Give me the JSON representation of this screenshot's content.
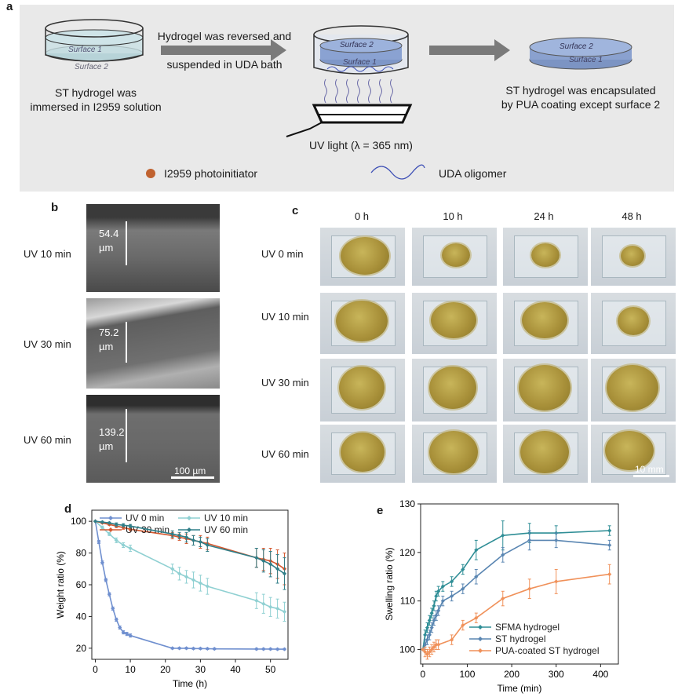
{
  "panel_labels": {
    "a": "a",
    "b": "b",
    "c": "c",
    "d": "d",
    "e": "e"
  },
  "panel_a": {
    "surface1": "Surface 1",
    "surface2": "Surface 2",
    "step1": [
      "ST hydrogel was",
      "immersed in I2959 solution"
    ],
    "arrow_text": [
      "Hydrogel was reversed and",
      "suspended in UDA bath"
    ],
    "uv_light": "UV light (λ = 365 nm)",
    "step3": [
      "ST hydrogel was encapsulated",
      "by PUA coating except surface 2"
    ],
    "legend_dot": "I2959 photoinitiator",
    "legend_wave": "UDA oligomer",
    "colors": {
      "dot": "#c0622f",
      "wave": "#3d4fb5",
      "arrow": "#7a7a7a"
    }
  },
  "panel_b": {
    "rows": [
      {
        "label": "UV 10 min",
        "thickness": "54.4",
        "unit": "µm"
      },
      {
        "label": "UV 30 min",
        "thickness": "75.2",
        "unit": "µm"
      },
      {
        "label": "UV 60 min",
        "thickness": "139.2",
        "unit": "µm"
      }
    ],
    "scale_bar": "100 µm"
  },
  "panel_c": {
    "columns": [
      "0 h",
      "10 h",
      "24 h",
      "48 h"
    ],
    "rows": [
      "UV 0 min",
      "UV 10 min",
      "UV 30 min",
      "UV 60 min"
    ],
    "scale_bar": "10 mm"
  },
  "chart_data": [
    {
      "panel": "d",
      "type": "line",
      "xlabel": "Time (h)",
      "ylabel": "Weight ratio (%)",
      "xlim": [
        -1,
        55
      ],
      "ylim": [
        13,
        107
      ],
      "xticks": [
        0,
        10,
        20,
        30,
        40,
        50
      ],
      "yticks": [
        20,
        40,
        60,
        80,
        100
      ],
      "legend": "top, 2 columns",
      "series": [
        {
          "name": "UV 0 min",
          "color": "#6f8fcf",
          "x": [
            0,
            1,
            2,
            3,
            4,
            5,
            6,
            7,
            8,
            9,
            10,
            22,
            24,
            26,
            28,
            30,
            32,
            34,
            46,
            48,
            50,
            52,
            54
          ],
          "y": [
            100,
            87,
            74,
            63,
            54,
            45,
            38,
            33,
            30,
            29,
            28,
            20,
            20,
            20,
            19.8,
            19.8,
            19.7,
            19.6,
            19.5,
            19.5,
            19.5,
            19.4,
            19.4
          ],
          "err": [
            0,
            1,
            1,
            1,
            1,
            1,
            1,
            1,
            1,
            1,
            1,
            0.5,
            0.5,
            0.5,
            0.5,
            0.5,
            0.5,
            0.5,
            0.5,
            0.5,
            0.5,
            0.5,
            0.5
          ]
        },
        {
          "name": "UV 10 min",
          "color": "#8fd0d2",
          "x": [
            0,
            2,
            4,
            6,
            8,
            10,
            22,
            24,
            26,
            28,
            30,
            32,
            46,
            48,
            50,
            52,
            54
          ],
          "y": [
            100,
            96,
            92,
            88,
            85,
            83,
            70,
            67,
            65,
            63,
            61,
            59,
            50,
            48,
            46,
            45,
            43
          ],
          "err": [
            0,
            1,
            1,
            1.5,
            1.5,
            2,
            3,
            4,
            4,
            5,
            5,
            5,
            5,
            6,
            6,
            6,
            6
          ]
        },
        {
          "name": "UV 30 min",
          "color": "#d4572e",
          "x": [
            0,
            2,
            4,
            6,
            8,
            10,
            22,
            24,
            26,
            28,
            30,
            32,
            46,
            48,
            50,
            52,
            54
          ],
          "y": [
            100,
            99,
            98,
            97,
            96,
            95,
            91,
            90,
            89,
            88,
            87,
            86,
            77,
            76,
            75,
            73,
            70
          ],
          "err": [
            0,
            0.5,
            0.5,
            1,
            1,
            1,
            2,
            2,
            3,
            3,
            4,
            4,
            6,
            7,
            8,
            9,
            10
          ]
        },
        {
          "name": "UV 60 min",
          "color": "#2f7e88",
          "x": [
            0,
            2,
            4,
            6,
            8,
            10,
            22,
            24,
            26,
            28,
            30,
            32,
            46,
            48,
            50,
            52,
            54
          ],
          "y": [
            100,
            99.5,
            99,
            98,
            97.5,
            97,
            92,
            91,
            90,
            88,
            87,
            85,
            77,
            75,
            73,
            70,
            67
          ],
          "err": [
            0,
            0.5,
            0.5,
            1,
            1,
            1,
            2,
            2,
            3,
            3,
            3,
            4,
            6,
            7,
            8,
            9,
            10
          ]
        }
      ]
    },
    {
      "panel": "e",
      "type": "line",
      "xlabel": "Time (min)",
      "ylabel": "Swelling ratio (%)",
      "xlim": [
        -5,
        440
      ],
      "ylim": [
        97,
        130
      ],
      "xticks": [
        0,
        100,
        200,
        300,
        400
      ],
      "yticks": [
        100,
        110,
        120,
        130
      ],
      "legend": "bottom-right",
      "series": [
        {
          "name": "SFMA hydrogel",
          "color": "#2f8e96",
          "x": [
            0,
            5,
            10,
            15,
            20,
            25,
            30,
            35,
            45,
            65,
            90,
            120,
            180,
            240,
            300,
            420
          ],
          "y": [
            100,
            103,
            104.5,
            106,
            107.5,
            109,
            111,
            112,
            113,
            114,
            116.5,
            120.5,
            123.5,
            124,
            124,
            124.5
          ],
          "err": [
            0,
            1,
            1,
            1,
            1,
            1,
            1,
            1,
            1,
            1,
            1,
            2,
            3,
            2,
            1.5,
            1
          ]
        },
        {
          "name": "ST hydrogel",
          "color": "#5a86b2",
          "x": [
            0,
            5,
            10,
            15,
            20,
            25,
            30,
            35,
            45,
            65,
            90,
            120,
            180,
            240,
            300,
            420
          ],
          "y": [
            100,
            101,
            102,
            103,
            104.5,
            106,
            107,
            108,
            110,
            111,
            112.5,
            115,
            119.5,
            122.5,
            122.5,
            121.5
          ],
          "err": [
            0,
            1,
            1,
            1,
            1,
            1,
            1,
            1,
            1,
            1,
            1,
            1.5,
            1.5,
            2,
            1.5,
            1
          ]
        },
        {
          "name": "PUA-coated ST hydrogel",
          "color": "#f0915a",
          "x": [
            0,
            5,
            10,
            15,
            20,
            25,
            30,
            35,
            65,
            90,
            120,
            180,
            240,
            300,
            420
          ],
          "y": [
            100,
            99.5,
            99,
            99.5,
            100,
            100.5,
            101,
            101,
            102,
            105,
            106.5,
            110.5,
            112.5,
            114,
            115.5
          ],
          "err": [
            0,
            1,
            1,
            1,
            1,
            1,
            1,
            1,
            1,
            1,
            1,
            1.5,
            2,
            2.5,
            2
          ]
        }
      ]
    }
  ]
}
